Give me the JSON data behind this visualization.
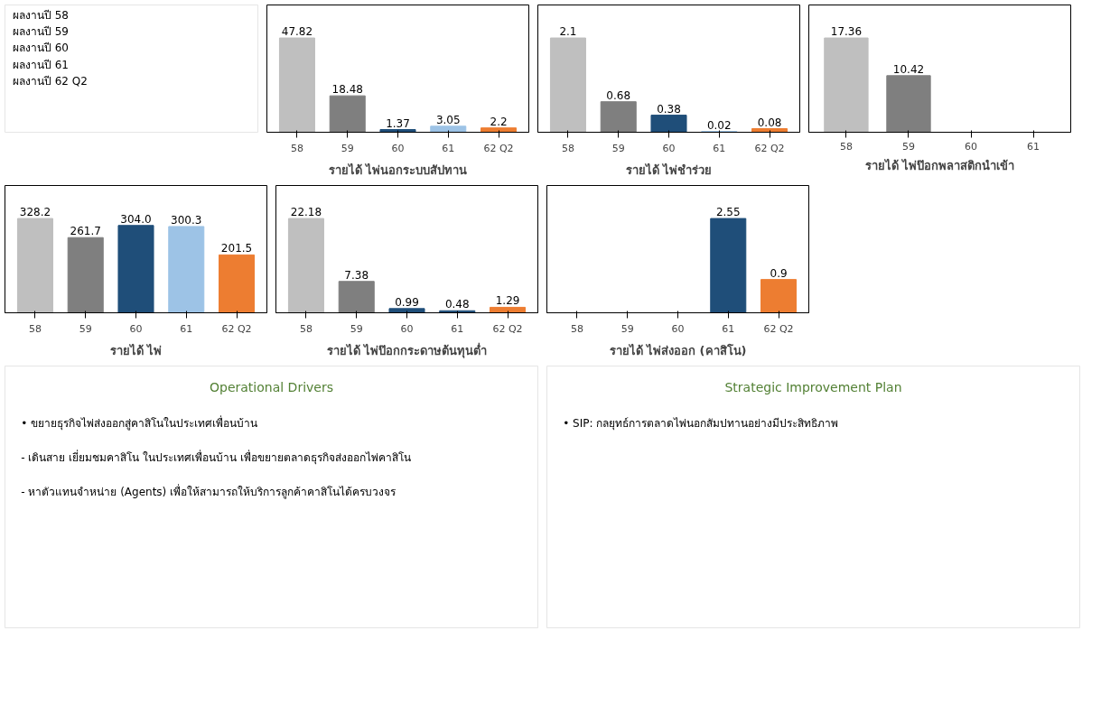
{
  "chart_data": [
    {
      "type": "other",
      "annotations": [
        "ผลงานปี 58",
        "ผลงานปี 59",
        "ผลงานปี 60",
        "ผลงานปี 61",
        "ผลงานปี 62 Q2"
      ]
    },
    {
      "type": "bar",
      "title": "รายได้ ไพ่นอกระบบสัปทาน",
      "categories": [
        "58",
        "59",
        "60",
        "61",
        "62 Q2"
      ],
      "values": [
        47.82,
        18.48,
        1.37,
        3.05,
        2.2
      ],
      "colors": [
        "#bfbfbf",
        "#7f7f7f",
        "#1f4e79",
        "#9dc3e6",
        "#ed7d31"
      ],
      "data_labels": true
    },
    {
      "type": "bar",
      "title": "รายได้ ไพ่ชำร่วย",
      "categories": [
        "58",
        "59",
        "60",
        "61",
        "62 Q2"
      ],
      "values": [
        2.1,
        0.68,
        0.38,
        0.02,
        0.08
      ],
      "colors": [
        "#bfbfbf",
        "#7f7f7f",
        "#1f4e79",
        "#9dc3e6",
        "#ed7d31"
      ],
      "data_labels": true
    },
    {
      "type": "bar",
      "title": "รายได้ ไพ่ป๊อกพลาสติกนำเข้า",
      "categories": [
        "58",
        "59",
        "60",
        "61"
      ],
      "values": [
        17.36,
        10.42,
        null,
        null
      ],
      "colors": [
        "#bfbfbf",
        "#7f7f7f",
        "#1f4e79",
        "#1f4e79"
      ],
      "data_labels": true
    },
    {
      "type": "bar",
      "title": "รายได้ ไพ่",
      "categories": [
        "58",
        "59",
        "60",
        "61",
        "62 Q2"
      ],
      "values": [
        328.2,
        261.7,
        304.0,
        300.3,
        201.5
      ],
      "value_labels": [
        "328.2",
        "261.7",
        "304.0",
        "300.3",
        "201.5"
      ],
      "colors": [
        "#bfbfbf",
        "#7f7f7f",
        "#1f4e79",
        "#9dc3e6",
        "#ed7d31"
      ]
    },
    {
      "type": "bar",
      "title": "รายได้ ไพ่ป๊อกกระดาษต้นทุนต่ำ",
      "categories": [
        "58",
        "59",
        "60",
        "61",
        "62 Q2"
      ],
      "values": [
        22.18,
        7.38,
        0.99,
        0.48,
        1.29
      ],
      "colors": [
        "#bfbfbf",
        "#7f7f7f",
        "#1f4e79",
        "#1f4e79",
        "#ed7d31"
      ],
      "data_labels": true
    },
    {
      "type": "bar",
      "title": "รายได้ ไพ่ส่งออก (คาสิโน)",
      "categories": [
        "58",
        "59",
        "60",
        "61",
        "62 Q2"
      ],
      "values": [
        null,
        null,
        null,
        2.55,
        0.9
      ],
      "colors": [
        "#bfbfbf",
        "#7f7f7f",
        "#1f4e79",
        "#1f4e79",
        "#ed7d31"
      ],
      "data_labels": true
    },
    {
      "type": "other",
      "title": "Operational Drivers",
      "annotations": [
        "• ขยายธุรกิจไพ่ส่งออกสู่คาสิโนในประเทศเพื่อนบ้าน",
        "- เดินสาย เยี่ยมชมคาสิโน ในประเทศเพื่อนบ้าน เพื่อขยายตลาดธุรกิจส่งออกไพ่คาสิโน",
        "- หาตัวแทนจำหน่าย (Agents) เพื่อให้สามารถให้บริการลูกค้าคาสิโนได้ครบวงจร"
      ]
    },
    {
      "type": "other",
      "title": "Strategic Improvement Plan",
      "annotations": [
        "• SIP: กลยุทธ์การตลาดไพ่นอกสัมปทานอย่างมีประสิทธิภาพ"
      ]
    }
  ]
}
